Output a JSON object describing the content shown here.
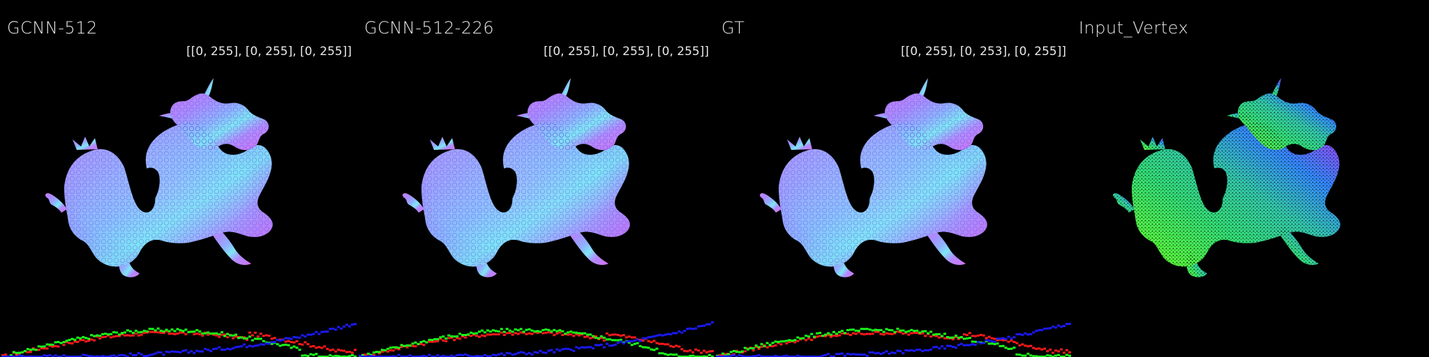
{
  "panels": [
    {
      "title": "GCNN-512",
      "range": "[[0, 255], [0, 255], [0, 255]]",
      "kind": "normal"
    },
    {
      "title": "GCNN-512-226",
      "range": "[[0, 255], [0, 255], [0, 255]]",
      "kind": "normal"
    },
    {
      "title": "GT",
      "range": "[[0, 255], [0, 253], [0, 255]]",
      "kind": "normal"
    },
    {
      "title": "Input_Vertex",
      "range": "",
      "kind": "vertex"
    }
  ],
  "colors": {
    "background": "#000000",
    "hist_red": "#ff1a1a",
    "hist_green": "#1aff1a",
    "hist_blue": "#1a1aff"
  }
}
